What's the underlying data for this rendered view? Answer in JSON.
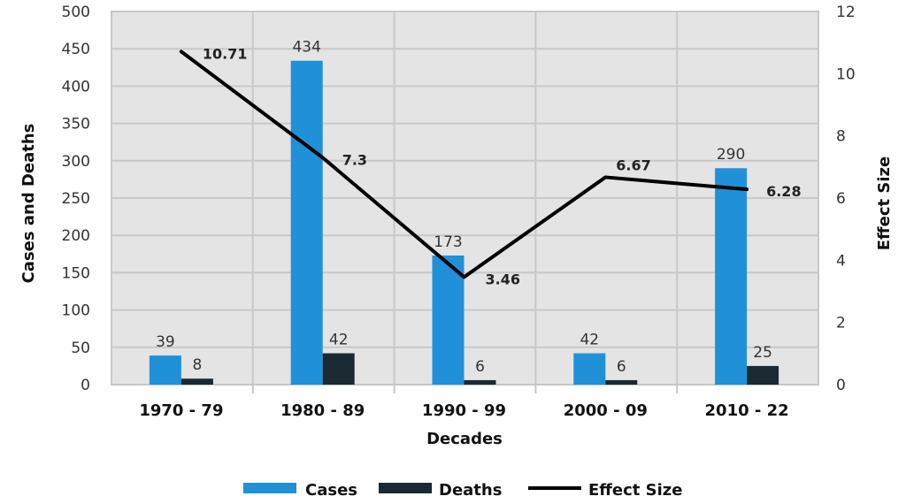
{
  "chart_data": {
    "type": "bar",
    "categories": [
      "1970 - 79",
      "1980 - 89",
      "1990 - 99",
      "2000 - 09",
      "2010 - 22"
    ],
    "series": [
      {
        "name": "Cases",
        "type": "bar",
        "axis": "left",
        "color": "#2090d8",
        "values": [
          39,
          434,
          173,
          42,
          290
        ]
      },
      {
        "name": "Deaths",
        "type": "bar",
        "axis": "left",
        "color": "#1a2a33",
        "values": [
          8,
          42,
          6,
          6,
          25
        ]
      },
      {
        "name": "Effect Size",
        "type": "line",
        "axis": "right",
        "color": "#000000",
        "values": [
          10.71,
          7.3,
          3.46,
          6.67,
          6.28
        ]
      }
    ],
    "xlabel": "Decades",
    "ylabel": "Cases and Deaths",
    "y2label": "Effect Size",
    "ylim": [
      0,
      500
    ],
    "y2lim": [
      0,
      12
    ],
    "yticks": [
      0,
      50,
      100,
      150,
      200,
      250,
      300,
      350,
      400,
      450,
      500
    ],
    "y2ticks": [
      0,
      2,
      4,
      6,
      8,
      10,
      12
    ],
    "grid": true,
    "legend": "bottom",
    "background": "#e4e4e4"
  }
}
